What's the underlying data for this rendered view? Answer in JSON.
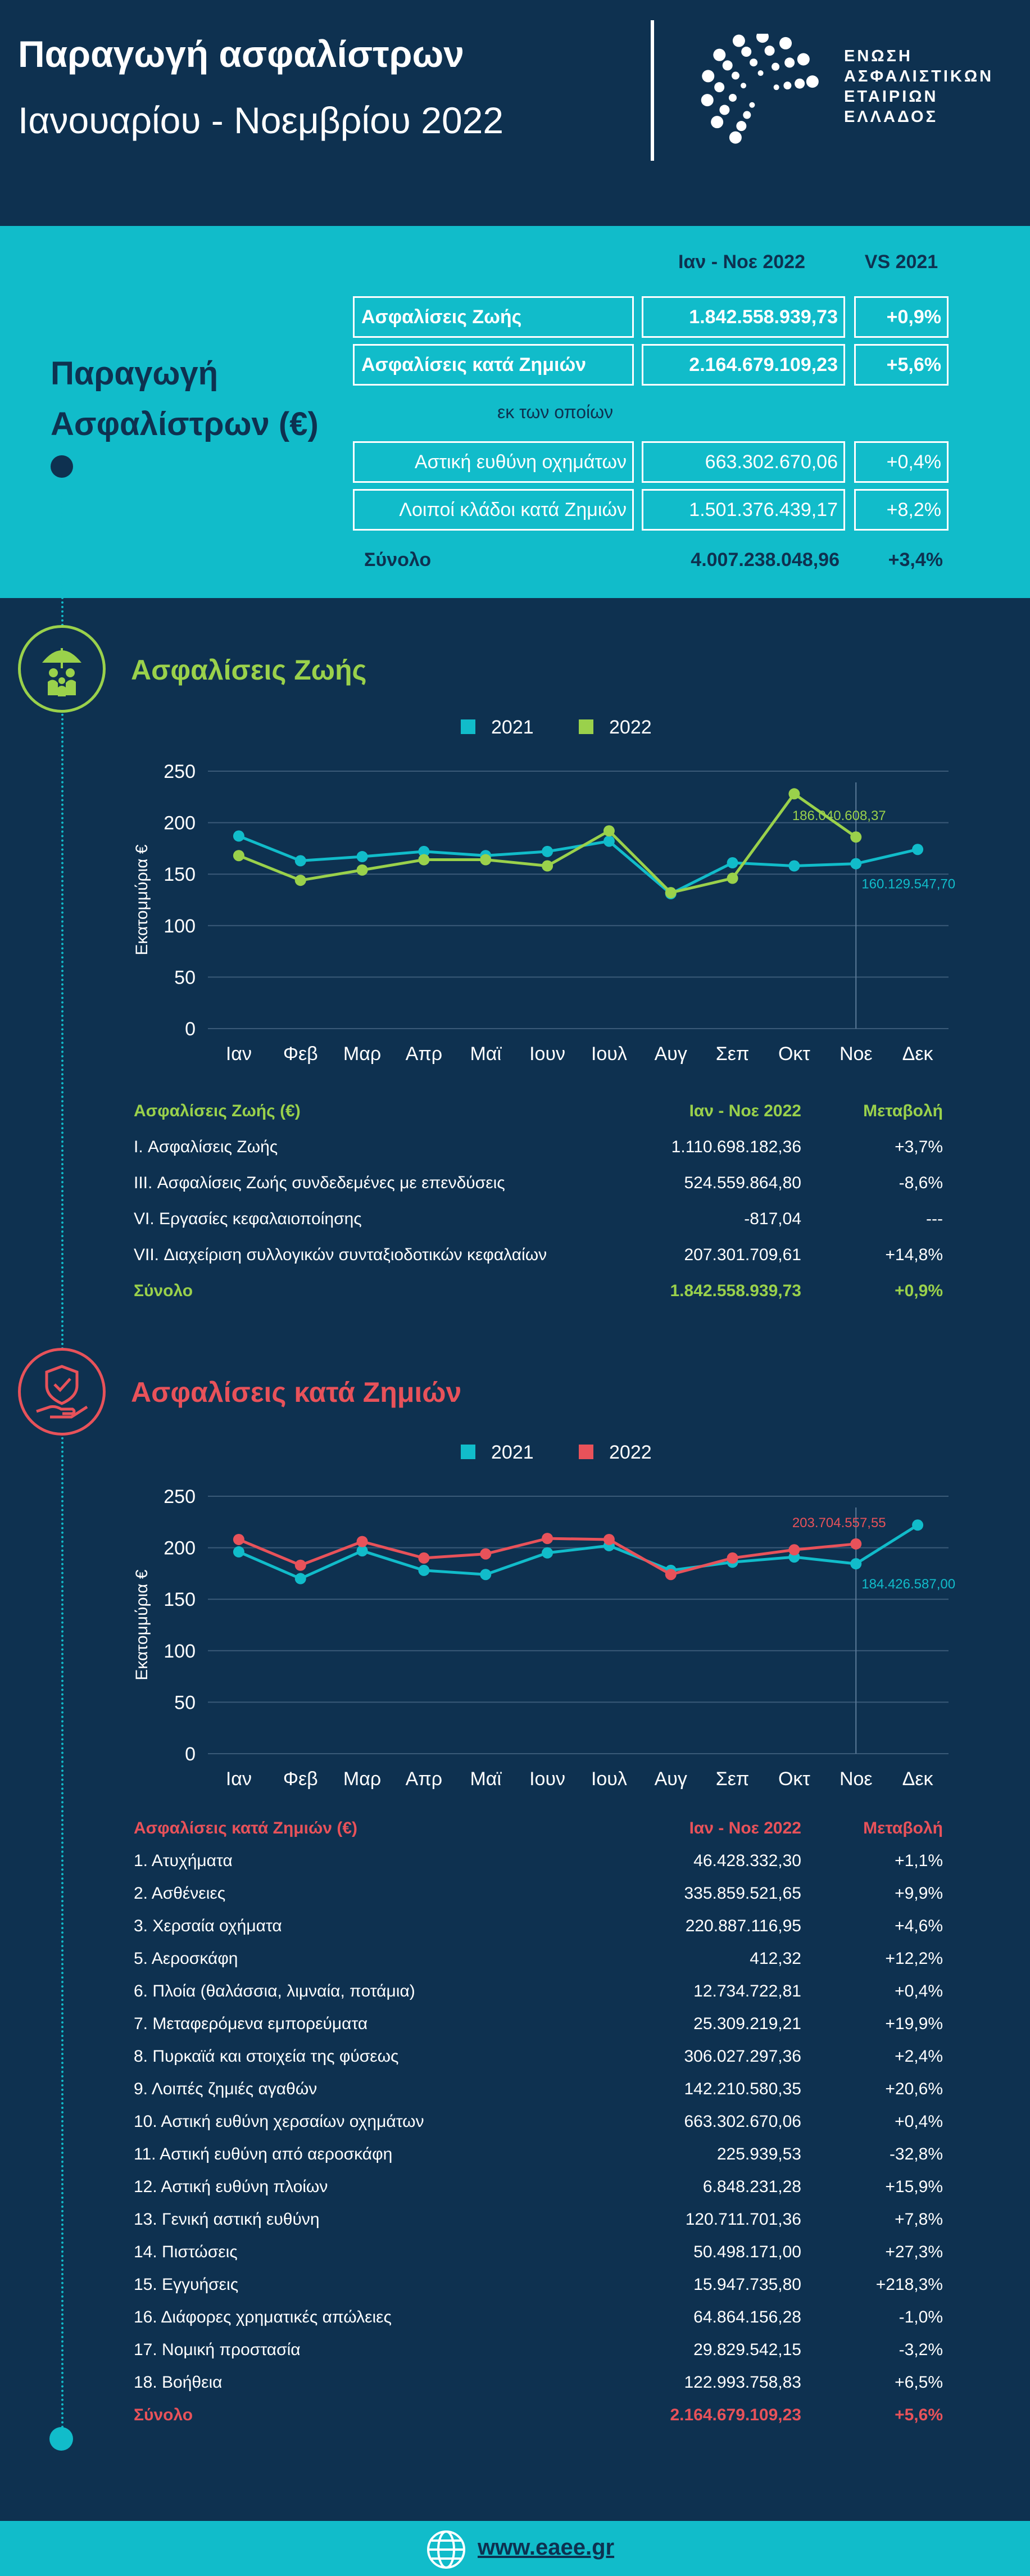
{
  "header": {
    "title": "Παραγωγή ασφαλίστρων",
    "subtitle": "Ιανουαρίου - Νοεμβρίου 2022",
    "logo_lines": [
      "ΕΝΩΣΗ",
      "ΑΣΦΑΛΙΣΤΙΚΩΝ",
      "ΕΤΑΙΡΙΩΝ",
      "ΕΛΛΑΔΟΣ"
    ]
  },
  "summary": {
    "label_line1": "Παραγωγή",
    "label_line2": "Ασφαλίστρων (€)",
    "col_period": "Ιαν - Νοε 2022",
    "col_change": "VS 2021",
    "life": {
      "label": "Ασφαλίσεις Ζωής",
      "value": "1.842.558.939,73",
      "change": "+0,9%"
    },
    "nonlife": {
      "label": "Ασφαλίσεις κατά Ζημιών",
      "value": "2.164.679.109,23",
      "change": "+5,6%"
    },
    "of_which": "εκ των οποίων",
    "motor": {
      "label": "Αστική ευθύνη οχημάτων",
      "value": "663.302.670,06",
      "change": "+0,4%"
    },
    "other": {
      "label": "Λοιποί κλάδοι κατά Ζημιών",
      "value": "1.501.376.439,17",
      "change": "+8,2%"
    },
    "total": {
      "label": "Σύνολο",
      "value": "4.007.238.048,96",
      "change": "+3,4%"
    }
  },
  "colors": {
    "background": "#0e3150",
    "teal": "#11bcca",
    "green": "#9ad14b",
    "red": "#e8525a"
  },
  "life_section": {
    "title": "Ασφαλίσεις Ζωής",
    "icon": "umbrella-family-icon",
    "table_header": {
      "col1": "Ασφαλίσεις Ζωής (€)",
      "col2": "Ιαν - Νοε 2022",
      "col3": "Μεταβολή"
    },
    "rows": [
      {
        "name": "I. Ασφαλίσεις  Ζωής",
        "value": "1.110.698.182,36",
        "change": "+3,7%"
      },
      {
        "name": "III. Ασφαλίσεις  Ζωής  συνδεδεμένες με επενδύσεις",
        "value": "524.559.864,80",
        "change": "-8,6%"
      },
      {
        "name": "VI. Εργασίες κεφαλαιοποίησης",
        "value": "-817,04",
        "change": "---"
      },
      {
        "name": "VII. Διαχείριση συλλογικών συνταξιοδοτικών κεφαλαίων",
        "value": "207.301.709,61",
        "change": "+14,8%"
      }
    ],
    "total": {
      "name": "Σύνολο",
      "value": "1.842.558.939,73",
      "change": "+0,9%"
    }
  },
  "nonlife_section": {
    "title": "Ασφαλίσεις κατά Ζημιών",
    "icon": "shield-hand-icon",
    "table_header": {
      "col1": "Ασφαλίσεις κατά Ζημιών (€)",
      "col2": "Ιαν - Νοε 2022",
      "col3": "Μεταβολή"
    },
    "rows": [
      {
        "name": "1. Ατυχήματα",
        "value": "46.428.332,30",
        "change": "+1,1%"
      },
      {
        "name": "2. Ασθένειες",
        "value": "335.859.521,65",
        "change": "+9,9%"
      },
      {
        "name": "3. Χερσαία οχήματα",
        "value": "220.887.116,95",
        "change": "+4,6%"
      },
      {
        "name": "5. Αεροσκάφη",
        "value": "412,32",
        "change": "+12,2%"
      },
      {
        "name": "6. Πλοία (θαλάσσια, λιμναία, ποτάμια)",
        "value": "12.734.722,81",
        "change": "+0,4%"
      },
      {
        "name": "7. Μεταφερόμενα εμπορεύματα",
        "value": "25.309.219,21",
        "change": "+19,9%"
      },
      {
        "name": "8. Πυρκαϊά και στοιχεία της φύσεως",
        "value": "306.027.297,36",
        "change": "+2,4%"
      },
      {
        "name": "9. Λοιπές ζημιές αγαθών",
        "value": "142.210.580,35",
        "change": "+20,6%"
      },
      {
        "name": "10. Αστική ευθύνη χερσαίων οχημάτων",
        "value": "663.302.670,06",
        "change": "+0,4%"
      },
      {
        "name": "11. Αστική ευθύνη από αεροσκάφη",
        "value": "225.939,53",
        "change": "-32,8%"
      },
      {
        "name": "12. Αστική ευθύνη πλοίων",
        "value": "6.848.231,28",
        "change": "+15,9%"
      },
      {
        "name": "13. Γενική αστική ευθύνη",
        "value": "120.711.701,36",
        "change": "+7,8%"
      },
      {
        "name": "14. Πιστώσεις",
        "value": "50.498.171,00",
        "change": "+27,3%"
      },
      {
        "name": "15. Εγγυήσεις",
        "value": "15.947.735,80",
        "change": "+218,3%"
      },
      {
        "name": "16. Διάφορες χρηματικές απώλειες",
        "value": "64.864.156,28",
        "change": "-1,0%"
      },
      {
        "name": "17. Νομική προστασία",
        "value": "29.829.542,15",
        "change": "-3,2%"
      },
      {
        "name": "18. Βοήθεια",
        "value": "122.993.758,83",
        "change": "+6,5%"
      }
    ],
    "total": {
      "name": "Σύνολο",
      "value": "2.164.679.109,23",
      "change": "+5,6%"
    }
  },
  "footer": {
    "url": "www.eaee.gr",
    "icon": "globe-icon"
  },
  "chart_data": [
    {
      "type": "line",
      "title": "Ασφαλίσεις Ζωής",
      "ylabel": "Εκατομμύρια €",
      "xlabel": "",
      "ylim": [
        0,
        250
      ],
      "yticks": [
        0,
        50,
        100,
        150,
        200,
        250
      ],
      "categories": [
        "Ιαν",
        "Φεβ",
        "Μαρ",
        "Απρ",
        "Μαϊ",
        "Ιουν",
        "Ιουλ",
        "Αυγ",
        "Σεπ",
        "Οκτ",
        "Νοε",
        "Δεκ"
      ],
      "series": [
        {
          "name": "2021",
          "color": "#11bcca",
          "values": [
            187,
            163,
            167,
            172,
            168,
            172,
            182,
            131,
            161,
            158,
            160.13,
            174
          ]
        },
        {
          "name": "2022",
          "color": "#9ad14b",
          "values": [
            168,
            144,
            154,
            164,
            164,
            158,
            192,
            132,
            146,
            228,
            186.04,
            null
          ]
        }
      ],
      "legend": "top-center",
      "annotations": [
        {
          "series": "2022",
          "category": "Νοε",
          "text": "186.040.608,37"
        },
        {
          "series": "2021",
          "category": "Νοε",
          "text": "160.129.547,70"
        }
      ]
    },
    {
      "type": "line",
      "title": "Ασφαλίσεις κατά Ζημιών",
      "ylabel": "Εκατομμύρια €",
      "xlabel": "",
      "ylim": [
        0,
        250
      ],
      "yticks": [
        0,
        50,
        100,
        150,
        200,
        250
      ],
      "categories": [
        "Ιαν",
        "Φεβ",
        "Μαρ",
        "Απρ",
        "Μαϊ",
        "Ιουν",
        "Ιουλ",
        "Αυγ",
        "Σεπ",
        "Οκτ",
        "Νοε",
        "Δεκ"
      ],
      "series": [
        {
          "name": "2021",
          "color": "#11bcca",
          "values": [
            196,
            170,
            197,
            178,
            174,
            195,
            202,
            178,
            186,
            191,
            184.43,
            222
          ]
        },
        {
          "name": "2022",
          "color": "#e8525a",
          "values": [
            208,
            183,
            206,
            190,
            194,
            209,
            208,
            174,
            190,
            198,
            203.7,
            null
          ]
        }
      ],
      "legend": "top-center",
      "annotations": [
        {
          "series": "2022",
          "category": "Νοε",
          "text": "203.704.557,55"
        },
        {
          "series": "2021",
          "category": "Νοε",
          "text": "184.426.587,00"
        }
      ]
    }
  ]
}
